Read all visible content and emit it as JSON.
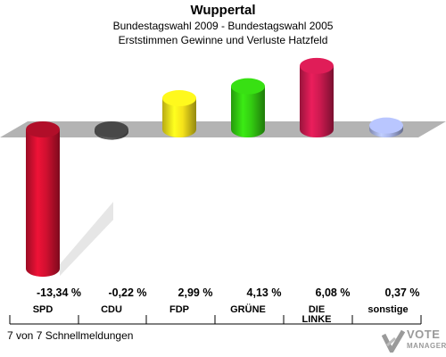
{
  "header": {
    "title": "Wuppertal",
    "subtitle1": "Bundestagswahl 2009 - Bundestagswahl 2005",
    "subtitle2": "Erststimmen Gewinne und Verluste Hatzfeld"
  },
  "chart_data": {
    "type": "bar",
    "title": "Wuppertal",
    "categories": [
      "SPD",
      "CDU",
      "FDP",
      "GRÜNE",
      "DIE LINKE",
      "sonstige"
    ],
    "values": [
      -13.34,
      -0.22,
      2.99,
      4.13,
      6.08,
      0.37
    ],
    "value_labels": [
      "-13,34 %",
      "-0,22 %",
      "2,99 %",
      "4,13 %",
      "6,08 %",
      "0,37 %"
    ],
    "category_labels": [
      [
        "SPD"
      ],
      [
        "CDU"
      ],
      [
        "FDP"
      ],
      [
        "GRÜNE"
      ],
      [
        "DIE",
        "LINKE"
      ],
      [
        "sonstige"
      ]
    ],
    "colors": [
      "#d01030",
      "#555555",
      "#f5e21a",
      "#33cc11",
      "#cc1a50",
      "#a8b4e8"
    ],
    "grid": false,
    "legend": "none"
  },
  "footer": {
    "text": "7 von 7 Schnellmeldungen"
  },
  "logo": {
    "line1": "VOTE",
    "line2": "MANAGER"
  }
}
